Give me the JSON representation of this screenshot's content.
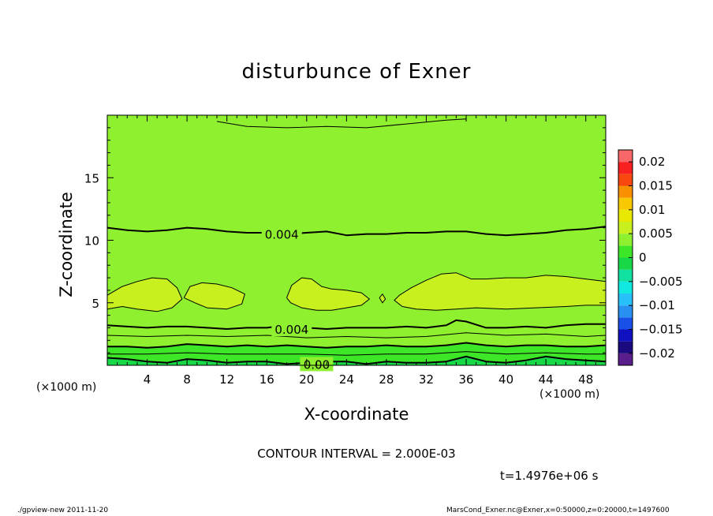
{
  "figure": {
    "title": "disturbunce of Exner",
    "contour_interval": "CONTOUR INTERVAL = 2.000E-03",
    "time_label": "t=1.4976e+06 s",
    "footer_left": "./gpview-new   2011-11-20",
    "footer_right": "MarsCond_Exner.nc@Exner,x=0:50000,z=0:20000,t=1497600"
  },
  "chart_data": {
    "type": "heatmap",
    "title": "disturbunce of Exner",
    "xlabel": "X-coordinate",
    "ylabel": "Z-coordinate",
    "x_unit": "(×1000 m)",
    "z_unit": "(×1000 m)",
    "xlim": [
      0,
      50
    ],
    "ylim": [
      0,
      20
    ],
    "x_ticks": [
      4,
      8,
      12,
      16,
      20,
      24,
      28,
      32,
      36,
      40,
      44,
      48
    ],
    "y_ticks": [
      5,
      10,
      15
    ],
    "colorbar": {
      "range": [
        -0.02,
        0.02
      ],
      "levels": [
        -0.0225,
        -0.02,
        -0.0175,
        -0.015,
        -0.0125,
        -0.01,
        -0.0075,
        -0.005,
        -0.0025,
        0,
        0.0025,
        0.005,
        0.0075,
        0.01,
        0.0125,
        0.015,
        0.0175,
        0.02,
        0.0225
      ],
      "colors": [
        "#5a1e8c",
        "#1a0a80",
        "#1010c0",
        "#1850e8",
        "#2890f0",
        "#28c0f8",
        "#10e8e0",
        "#10e0a0",
        "#18d848",
        "#3ee628",
        "#8ef02e",
        "#c8f01e",
        "#e8e800",
        "#f8c800",
        "#f89000",
        "#f84810",
        "#f82020",
        "#f86868"
      ],
      "tick_values": [
        0.02,
        0.015,
        0.01,
        0.005,
        0,
        -0.005,
        -0.01,
        -0.015,
        -0.02
      ],
      "tick_labels": [
        "0.02",
        "0.015",
        "0.01",
        "0.005",
        "0",
        "−0.005",
        "−0.01",
        "−0.015",
        "−0.02"
      ]
    },
    "contour_labels": [
      {
        "text": "0.004",
        "x": 17.5,
        "z": 10.5
      },
      {
        "text": "0.004",
        "x": 18.5,
        "z": 2.9
      },
      {
        "text": "0.00",
        "x": 21.0,
        "z": 0.1
      }
    ],
    "contours": [
      {
        "level": 0.004,
        "weight": "major",
        "points": [
          [
            0,
            11.0
          ],
          [
            2,
            10.8
          ],
          [
            4,
            10.7
          ],
          [
            6,
            10.8
          ],
          [
            8,
            11.0
          ],
          [
            10,
            10.9
          ],
          [
            12,
            10.7
          ],
          [
            14,
            10.6
          ],
          [
            16,
            10.6
          ],
          [
            18,
            10.5
          ],
          [
            20,
            10.6
          ],
          [
            22,
            10.7
          ],
          [
            24,
            10.4
          ],
          [
            26,
            10.5
          ],
          [
            28,
            10.5
          ],
          [
            30,
            10.6
          ],
          [
            32,
            10.6
          ],
          [
            34,
            10.7
          ],
          [
            36,
            10.7
          ],
          [
            38,
            10.5
          ],
          [
            40,
            10.4
          ],
          [
            42,
            10.5
          ],
          [
            44,
            10.6
          ],
          [
            46,
            10.8
          ],
          [
            48,
            10.9
          ],
          [
            50,
            11.1
          ]
        ]
      },
      {
        "level": 0.004,
        "weight": "major",
        "points": [
          [
            0,
            3.2
          ],
          [
            2,
            3.1
          ],
          [
            4,
            3.0
          ],
          [
            6,
            3.1
          ],
          [
            8,
            3.1
          ],
          [
            10,
            3.0
          ],
          [
            12,
            2.9
          ],
          [
            14,
            3.0
          ],
          [
            16,
            3.0
          ],
          [
            18,
            3.2
          ],
          [
            20,
            3.0
          ],
          [
            22,
            2.9
          ],
          [
            24,
            3.0
          ],
          [
            26,
            3.0
          ],
          [
            28,
            3.0
          ],
          [
            30,
            3.1
          ],
          [
            32,
            3.0
          ],
          [
            34,
            3.2
          ],
          [
            35,
            3.6
          ],
          [
            36,
            3.5
          ],
          [
            38,
            3.0
          ],
          [
            40,
            3.0
          ],
          [
            42,
            3.1
          ],
          [
            44,
            3.0
          ],
          [
            46,
            3.2
          ],
          [
            48,
            3.3
          ],
          [
            50,
            3.3
          ]
        ]
      },
      {
        "level": 0.002,
        "weight": "major",
        "points": [
          [
            0,
            1.5
          ],
          [
            2,
            1.5
          ],
          [
            4,
            1.4
          ],
          [
            6,
            1.5
          ],
          [
            8,
            1.7
          ],
          [
            10,
            1.6
          ],
          [
            12,
            1.5
          ],
          [
            14,
            1.6
          ],
          [
            16,
            1.5
          ],
          [
            18,
            1.6
          ],
          [
            20,
            1.5
          ],
          [
            22,
            1.4
          ],
          [
            24,
            1.5
          ],
          [
            26,
            1.5
          ],
          [
            28,
            1.6
          ],
          [
            30,
            1.5
          ],
          [
            32,
            1.5
          ],
          [
            34,
            1.6
          ],
          [
            36,
            1.8
          ],
          [
            38,
            1.6
          ],
          [
            40,
            1.5
          ],
          [
            42,
            1.6
          ],
          [
            44,
            1.6
          ],
          [
            46,
            1.5
          ],
          [
            48,
            1.5
          ],
          [
            50,
            1.6
          ]
        ]
      },
      {
        "level": 0.0,
        "weight": "major",
        "points": [
          [
            0,
            0.6
          ],
          [
            2,
            0.5
          ],
          [
            4,
            0.3
          ],
          [
            6,
            0.2
          ],
          [
            8,
            0.5
          ],
          [
            10,
            0.4
          ],
          [
            12,
            0.2
          ],
          [
            14,
            0.3
          ],
          [
            16,
            0.3
          ],
          [
            18,
            0.1
          ],
          [
            20,
            0.2
          ],
          [
            22,
            0.3
          ],
          [
            24,
            0.3
          ],
          [
            26,
            0.1
          ],
          [
            28,
            0.3
          ],
          [
            30,
            0.2
          ],
          [
            32,
            0.2
          ],
          [
            34,
            0.3
          ],
          [
            36,
            0.7
          ],
          [
            38,
            0.3
          ],
          [
            40,
            0.2
          ],
          [
            42,
            0.4
          ],
          [
            44,
            0.7
          ],
          [
            46,
            0.5
          ],
          [
            48,
            0.4
          ],
          [
            50,
            0.3
          ]
        ]
      },
      {
        "level": 0.004,
        "weight": "minor",
        "points": [
          [
            11,
            19.5
          ],
          [
            14,
            19.1
          ],
          [
            18,
            19.0
          ],
          [
            22,
            19.1
          ],
          [
            26,
            19.0
          ],
          [
            30,
            19.3
          ],
          [
            34,
            19.6
          ],
          [
            36,
            19.7
          ]
        ]
      },
      {
        "level": 0.006,
        "weight": "minor",
        "points": [
          [
            0,
            5.6
          ],
          [
            1.5,
            6.3
          ],
          [
            3,
            6.7
          ],
          [
            4.5,
            7.0
          ],
          [
            6,
            6.9
          ],
          [
            7,
            6.2
          ],
          [
            7.5,
            5.3
          ],
          [
            6.5,
            4.6
          ],
          [
            5,
            4.3
          ],
          [
            3,
            4.5
          ],
          [
            1.5,
            4.7
          ],
          [
            0,
            4.5
          ]
        ]
      },
      {
        "level": 0.006,
        "weight": "minor",
        "points": [
          [
            7.7,
            5.4
          ],
          [
            8.3,
            6.3
          ],
          [
            9.5,
            6.6
          ],
          [
            11,
            6.5
          ],
          [
            12.5,
            6.2
          ],
          [
            13.8,
            5.7
          ],
          [
            13.5,
            4.9
          ],
          [
            12,
            4.5
          ],
          [
            10,
            4.6
          ],
          [
            8.8,
            5.0
          ],
          [
            7.7,
            5.4
          ]
        ]
      },
      {
        "level": 0.006,
        "weight": "minor",
        "points": [
          [
            18,
            5.4
          ],
          [
            18.5,
            6.4
          ],
          [
            19.5,
            7.0
          ],
          [
            20.5,
            6.9
          ],
          [
            21.5,
            6.3
          ],
          [
            22.5,
            6.1
          ],
          [
            24,
            6.0
          ],
          [
            25.5,
            5.8
          ],
          [
            26.3,
            5.3
          ],
          [
            25.5,
            4.8
          ],
          [
            24,
            4.6
          ],
          [
            22.5,
            4.4
          ],
          [
            21,
            4.4
          ],
          [
            19.5,
            4.6
          ],
          [
            18.4,
            5.0
          ],
          [
            18,
            5.4
          ]
        ]
      },
      {
        "level": 0.006,
        "weight": "minor",
        "points": [
          [
            27.3,
            5.4
          ],
          [
            27.6,
            5.7
          ],
          [
            27.9,
            5.3
          ],
          [
            27.6,
            5.0
          ],
          [
            27.3,
            5.4
          ]
        ]
      },
      {
        "level": 0.006,
        "weight": "minor",
        "points": [
          [
            50,
            6.7
          ],
          [
            48,
            6.9
          ],
          [
            46,
            7.1
          ],
          [
            44,
            7.2
          ],
          [
            42,
            7.0
          ],
          [
            40,
            7.0
          ],
          [
            38,
            6.9
          ],
          [
            36.5,
            6.9
          ],
          [
            35,
            7.4
          ],
          [
            33.5,
            7.3
          ],
          [
            32,
            6.8
          ],
          [
            30.5,
            6.2
          ],
          [
            29.3,
            5.6
          ],
          [
            28.8,
            5.2
          ],
          [
            29.6,
            4.7
          ],
          [
            31,
            4.5
          ],
          [
            33,
            4.4
          ],
          [
            35,
            4.5
          ],
          [
            37,
            4.6
          ],
          [
            40,
            4.5
          ],
          [
            43,
            4.6
          ],
          [
            46,
            4.7
          ],
          [
            48,
            4.8
          ],
          [
            50,
            4.8
          ]
        ]
      },
      {
        "level": 0.004,
        "weight": "minor",
        "points": [
          [
            0,
            2.4
          ],
          [
            4,
            2.3
          ],
          [
            8,
            2.4
          ],
          [
            12,
            2.3
          ],
          [
            16,
            2.4
          ],
          [
            20,
            2.2
          ],
          [
            24,
            2.3
          ],
          [
            28,
            2.2
          ],
          [
            32,
            2.3
          ],
          [
            36,
            2.6
          ],
          [
            40,
            2.4
          ],
          [
            44,
            2.5
          ],
          [
            48,
            2.3
          ],
          [
            50,
            2.4
          ]
        ]
      },
      {
        "level": 0.002,
        "weight": "minor",
        "points": [
          [
            0,
            0.9
          ],
          [
            4,
            0.9
          ],
          [
            8,
            1.0
          ],
          [
            12,
            0.9
          ],
          [
            16,
            0.9
          ],
          [
            20,
            0.9
          ],
          [
            24,
            0.8
          ],
          [
            28,
            0.9
          ],
          [
            32,
            0.9
          ],
          [
            36,
            1.1
          ],
          [
            40,
            0.9
          ],
          [
            44,
            1.0
          ],
          [
            48,
            0.9
          ],
          [
            50,
            0.9
          ]
        ]
      }
    ]
  }
}
